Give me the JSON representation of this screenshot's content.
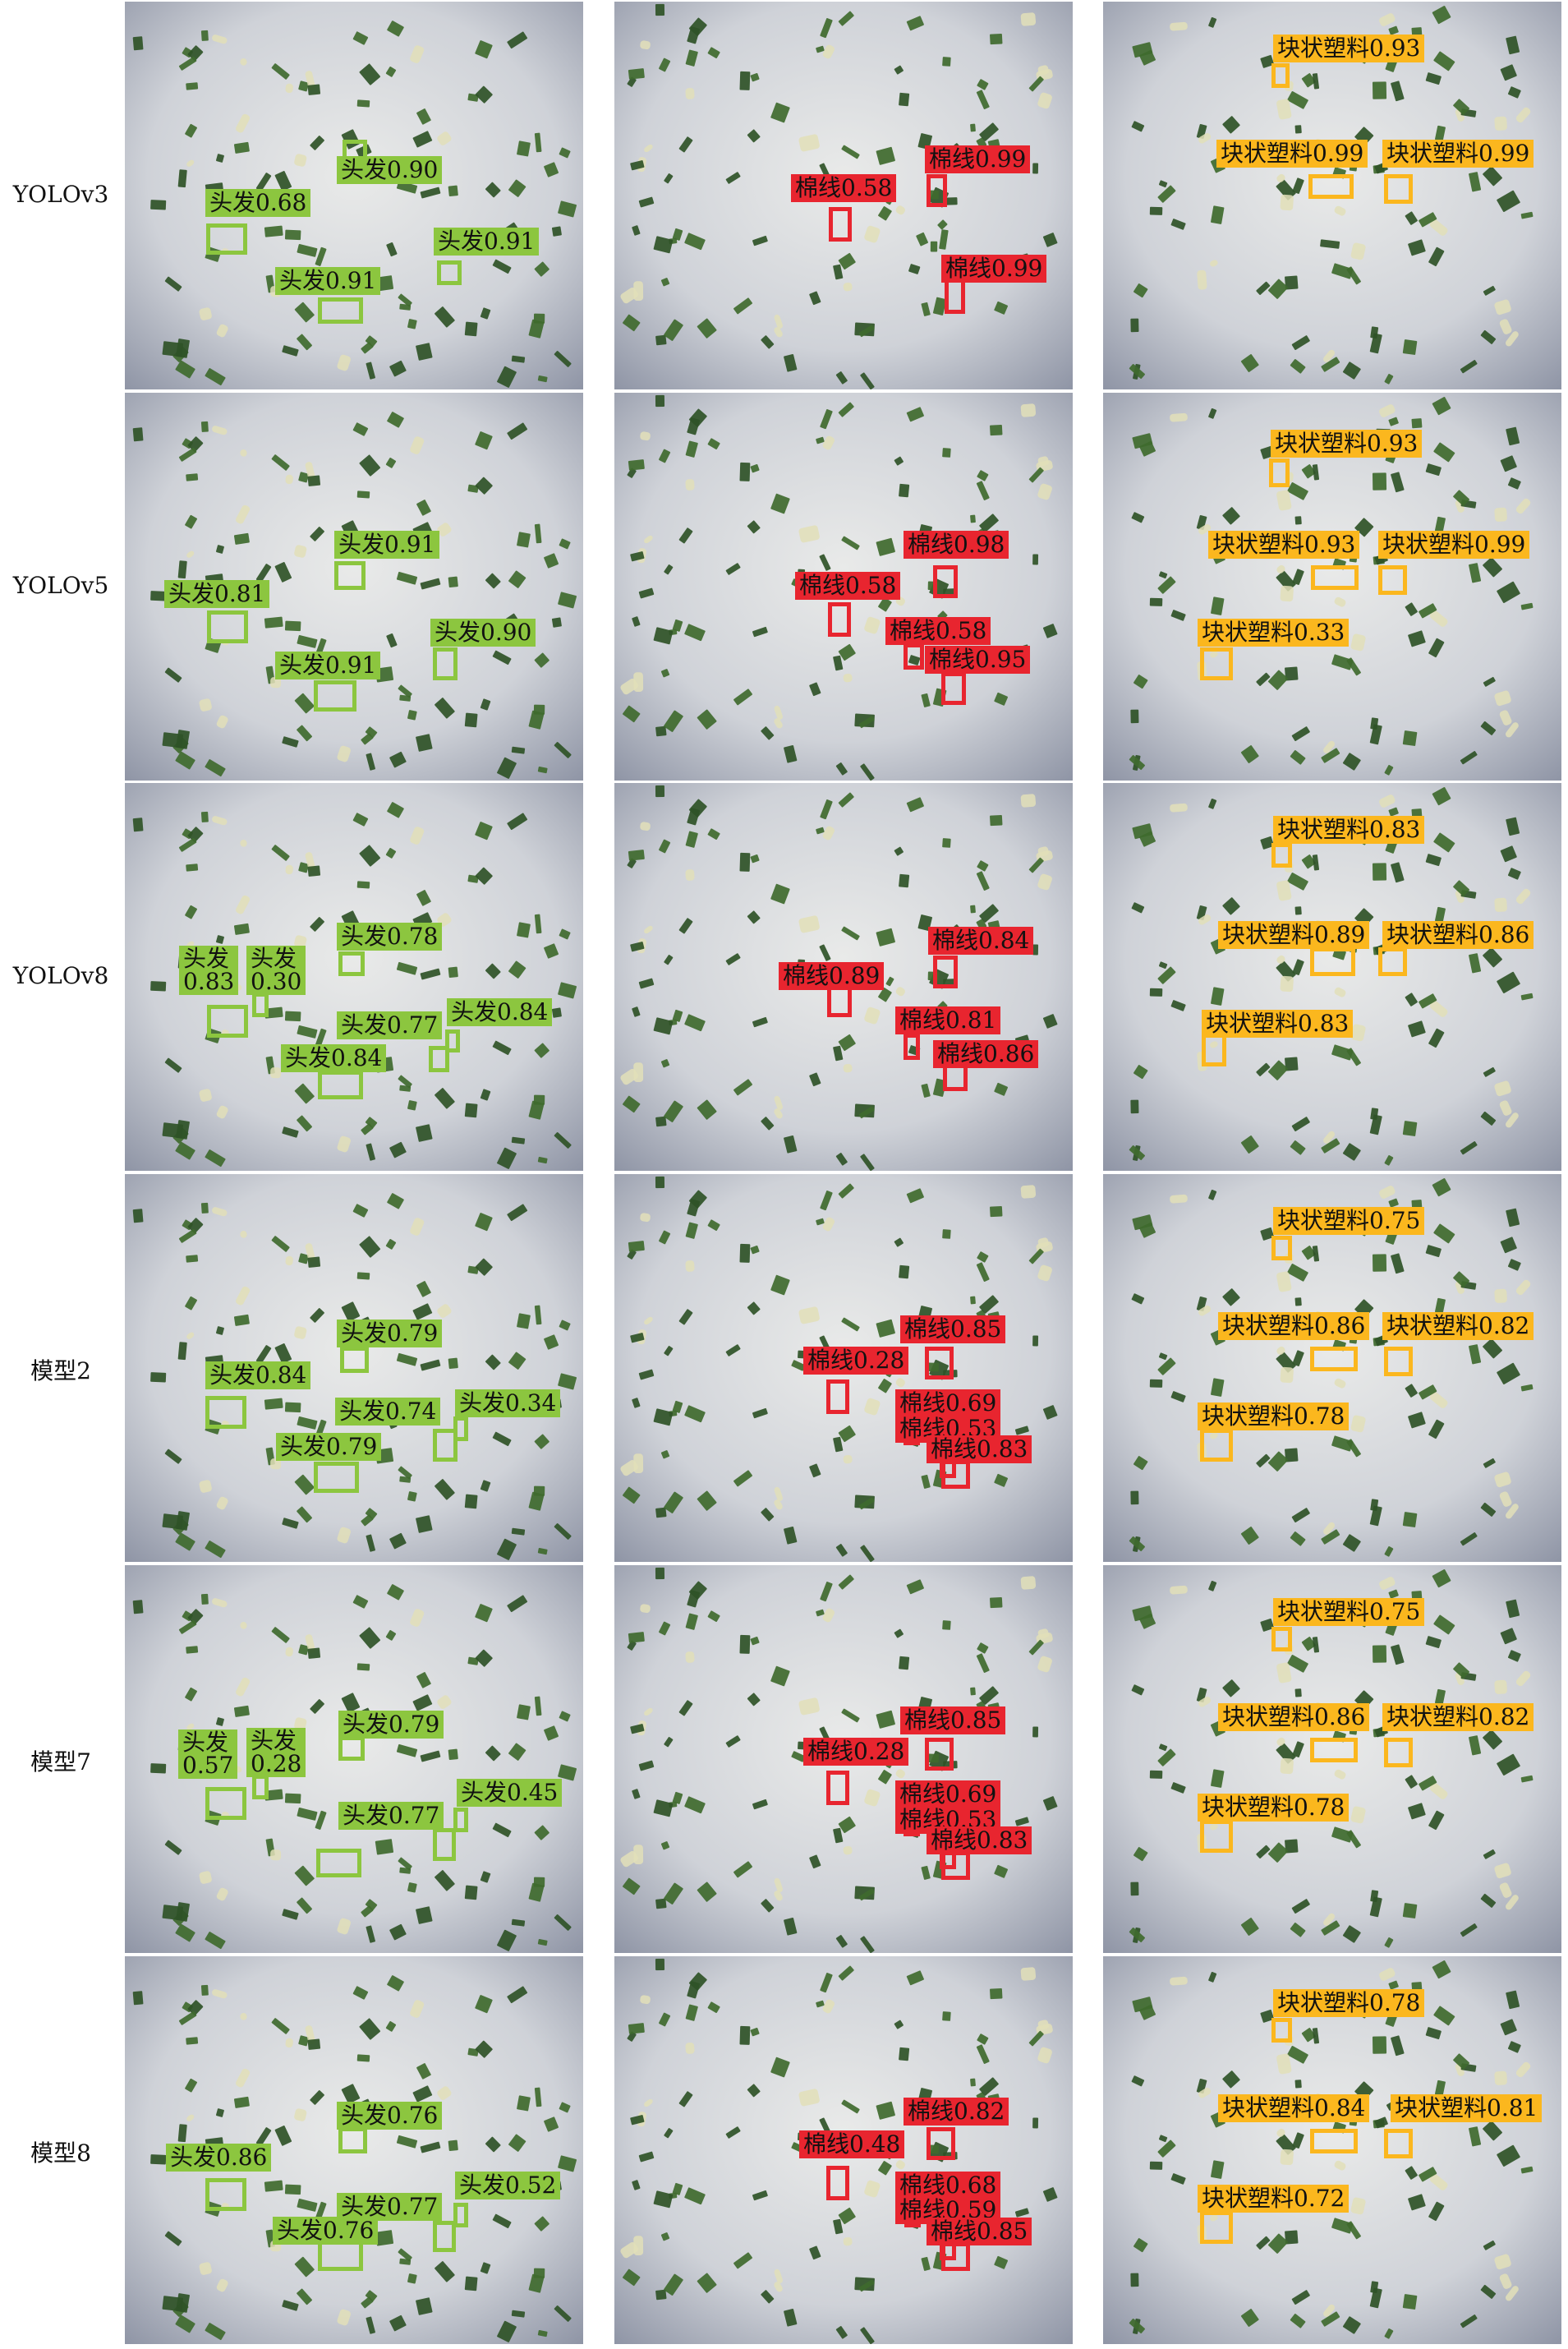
{
  "colors": {
    "hair": "#8cc63f",
    "cotton": "#e8252f",
    "plastic": "#fbb71e",
    "background": "#d3d6db",
    "leaf": "#2f5227"
  },
  "rows": [
    {
      "label": "YOLOv3",
      "panels": [
        {
          "dets": [
            {
              "text": "头发0.90"
            },
            {
              "text": "头发0.68"
            },
            {
              "text": "头发0.91"
            },
            {
              "text": "头发0.91"
            }
          ]
        },
        {
          "dets": [
            {
              "text": "棉线0.99"
            },
            {
              "text": "棉线0.58"
            },
            {
              "text": "棉线0.99"
            }
          ]
        },
        {
          "dets": [
            {
              "text": "块状塑料0.93"
            },
            {
              "text": "块状塑料0.99"
            },
            {
              "text": "块状塑料0.99"
            }
          ]
        }
      ]
    },
    {
      "label": "YOLOv5",
      "panels": [
        {
          "dets": [
            {
              "text": "头发0.91"
            },
            {
              "text": "头发0.81"
            },
            {
              "text": "头发0.90"
            },
            {
              "text": "头发0.91"
            }
          ]
        },
        {
          "dets": [
            {
              "text": "棉线0.98"
            },
            {
              "text": "棉线0.58"
            },
            {
              "text": "棉线0.58"
            },
            {
              "text": "棉线0.95"
            }
          ]
        },
        {
          "dets": [
            {
              "text": "块状塑料0.93"
            },
            {
              "text": "块状塑料0.93"
            },
            {
              "text": "块状塑料0.99"
            },
            {
              "text": "块状塑料0.33"
            }
          ]
        }
      ]
    },
    {
      "label": "YOLOv8",
      "panels": [
        {
          "dets": [
            {
              "text": "头发0.83",
              "line1": "头发",
              "line2": "0.83"
            },
            {
              "text": "头发0.30",
              "line1": "头发",
              "line2": "0.30"
            },
            {
              "text": "头发0.78"
            },
            {
              "text": "头发0.77"
            },
            {
              "text": "头发0.84"
            },
            {
              "text": "头发0.84"
            }
          ]
        },
        {
          "dets": [
            {
              "text": "棉线0.84"
            },
            {
              "text": "棉线0.89"
            },
            {
              "text": "棉线0.81"
            },
            {
              "text": "棉线0.86"
            }
          ]
        },
        {
          "dets": [
            {
              "text": "块状塑料0.83"
            },
            {
              "text": "块状塑料0.89"
            },
            {
              "text": "块状塑料0.86"
            },
            {
              "text": "块状塑料0.83"
            }
          ]
        }
      ]
    },
    {
      "label": "模型2",
      "panels": [
        {
          "dets": [
            {
              "text": "头发0.79"
            },
            {
              "text": "头发0.84"
            },
            {
              "text": "头发0.74"
            },
            {
              "text": "头发0.34"
            },
            {
              "text": "头发0.79"
            }
          ]
        },
        {
          "dets": [
            {
              "text": "棉线0.85"
            },
            {
              "text": "棉线0.28"
            },
            {
              "text": "棉线0.69"
            },
            {
              "text": "棉线0.53"
            },
            {
              "text": "棉线0.83"
            }
          ]
        },
        {
          "dets": [
            {
              "text": "块状塑料0.75"
            },
            {
              "text": "块状塑料0.86"
            },
            {
              "text": "块状塑料0.82"
            },
            {
              "text": "块状塑料0.78"
            }
          ]
        }
      ]
    },
    {
      "label": "模型7",
      "panels": [
        {
          "dets": [
            {
              "text": "头发0.57",
              "line1": "头发",
              "line2": "0.57"
            },
            {
              "text": "头发0.28",
              "line1": "头发",
              "line2": "0.28"
            },
            {
              "text": "头发0.79"
            },
            {
              "text": "头发0.77"
            },
            {
              "text": "头发0.45"
            },
            {
              "text": ""
            }
          ]
        },
        {
          "dets": [
            {
              "text": "棉线0.85"
            },
            {
              "text": "棉线0.28"
            },
            {
              "text": "棉线0.69"
            },
            {
              "text": "棉线0.53"
            },
            {
              "text": "棉线0.83"
            }
          ]
        },
        {
          "dets": [
            {
              "text": "块状塑料0.75"
            },
            {
              "text": "块状塑料0.86"
            },
            {
              "text": "块状塑料0.82"
            },
            {
              "text": "块状塑料0.78"
            }
          ]
        }
      ]
    },
    {
      "label": "模型8",
      "panels": [
        {
          "dets": [
            {
              "text": "头发0.76"
            },
            {
              "text": "头发0.86"
            },
            {
              "text": "头发0.77"
            },
            {
              "text": "头发0.52"
            },
            {
              "text": "头发0.76"
            }
          ]
        },
        {
          "dets": [
            {
              "text": "棉线0.82"
            },
            {
              "text": "棉线0.48"
            },
            {
              "text": "棉线0.68"
            },
            {
              "text": "棉线0.59"
            },
            {
              "text": "棉线0.85"
            }
          ]
        },
        {
          "dets": [
            {
              "text": "块状塑料0.78"
            },
            {
              "text": "块状塑料0.84"
            },
            {
              "text": "块状塑料0.81"
            },
            {
              "text": "块状塑料0.72"
            }
          ]
        }
      ]
    }
  ]
}
